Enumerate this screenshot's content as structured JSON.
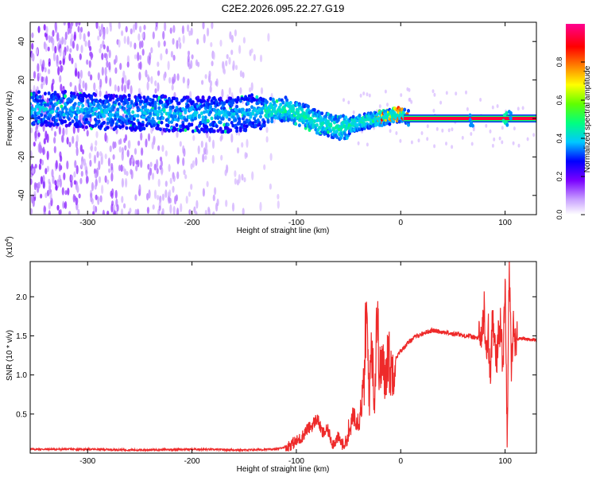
{
  "title": "C2E2.2026.095.22.27.G19",
  "chart_data": [
    {
      "type": "heatmap",
      "xlabel": "Height of straight line (km)",
      "ylabel": "Frequency (Hz)",
      "xlim": [
        -355,
        130
      ],
      "ylim": [
        -50,
        50
      ],
      "xticks": [
        -300,
        -200,
        -100,
        0,
        100
      ],
      "yticks": [
        -40,
        -20,
        0,
        20,
        40
      ],
      "ridge": {
        "x": [
          -355,
          -320,
          -280,
          -240,
          -200,
          -160,
          -130,
          -110,
          -95,
          -80,
          -70,
          -60,
          -50,
          -40,
          -30,
          -20,
          -10,
          0,
          10,
          130
        ],
        "y": [
          5,
          5,
          3,
          3,
          2,
          2,
          4,
          5,
          2,
          -2,
          -3,
          -5,
          -4,
          -2,
          -1,
          0,
          1,
          2,
          0,
          0
        ]
      },
      "colorbar": {
        "label": "Normalized spectral amplitude",
        "range": [
          0,
          1
        ],
        "ticks": [
          0.0,
          0.2,
          0.4,
          0.6,
          0.8
        ],
        "colors": [
          "#ffffff",
          "#c8a0ff",
          "#7a00ff",
          "#0000ff",
          "#00c8ff",
          "#00ff80",
          "#60ff00",
          "#ffff00",
          "#ff8000",
          "#ff0000",
          "#ff0090"
        ]
      }
    },
    {
      "type": "line",
      "xlabel": "Height of straight line (km)",
      "ylabel": "SNR (10 * v/v)",
      "multiplier": "(x10",
      "multiplier_exp": "4",
      "xlim": [
        -355,
        130
      ],
      "ylim": [
        0,
        2.45
      ],
      "xticks": [
        -300,
        -200,
        -100,
        0,
        100
      ],
      "yticks": [
        0.5,
        1.0,
        1.5,
        2.0
      ],
      "ytick_labels": [
        "0.5",
        "1.0",
        "1.5",
        "2.0"
      ],
      "series": [
        {
          "color": "#ee2a2a",
          "x": [
            -355,
            -300,
            -250,
            -200,
            -150,
            -120,
            -110,
            -100,
            -95,
            -90,
            -85,
            -80,
            -75,
            -70,
            -65,
            -60,
            -55,
            -50,
            -45,
            -40,
            -35,
            -33,
            -30,
            -28,
            -25,
            -23,
            -20,
            -18,
            -15,
            -12,
            -10,
            -8,
            -5,
            -3,
            0,
            5,
            10,
            15,
            20,
            25,
            30,
            35,
            40,
            45,
            50,
            55,
            60,
            65,
            70,
            75,
            78,
            80,
            82,
            84,
            86,
            88,
            90,
            92,
            94,
            96,
            98,
            100,
            102,
            104,
            106,
            108,
            110,
            115,
            120,
            125,
            130
          ],
          "y": [
            0.05,
            0.05,
            0.04,
            0.05,
            0.04,
            0.05,
            0.08,
            0.15,
            0.2,
            0.3,
            0.35,
            0.45,
            0.25,
            0.3,
            0.12,
            0.2,
            0.1,
            0.2,
            0.5,
            0.4,
            0.9,
            1.8,
            0.7,
            1.5,
            0.6,
            1.85,
            1.0,
            1.2,
            0.9,
            1.35,
            1.0,
            1.1,
            1.2,
            1.25,
            1.3,
            1.38,
            1.45,
            1.5,
            1.52,
            1.55,
            1.57,
            1.56,
            1.55,
            1.54,
            1.52,
            1.53,
            1.5,
            1.5,
            1.48,
            1.47,
            1.5,
            1.85,
            1.2,
            1.55,
            0.9,
            1.8,
            1.5,
            1.2,
            1.55,
            1.65,
            1.0,
            2.35,
            0.2,
            2.45,
            1.1,
            1.6,
            1.45,
            1.47,
            1.46,
            1.45,
            1.45
          ]
        }
      ]
    }
  ]
}
